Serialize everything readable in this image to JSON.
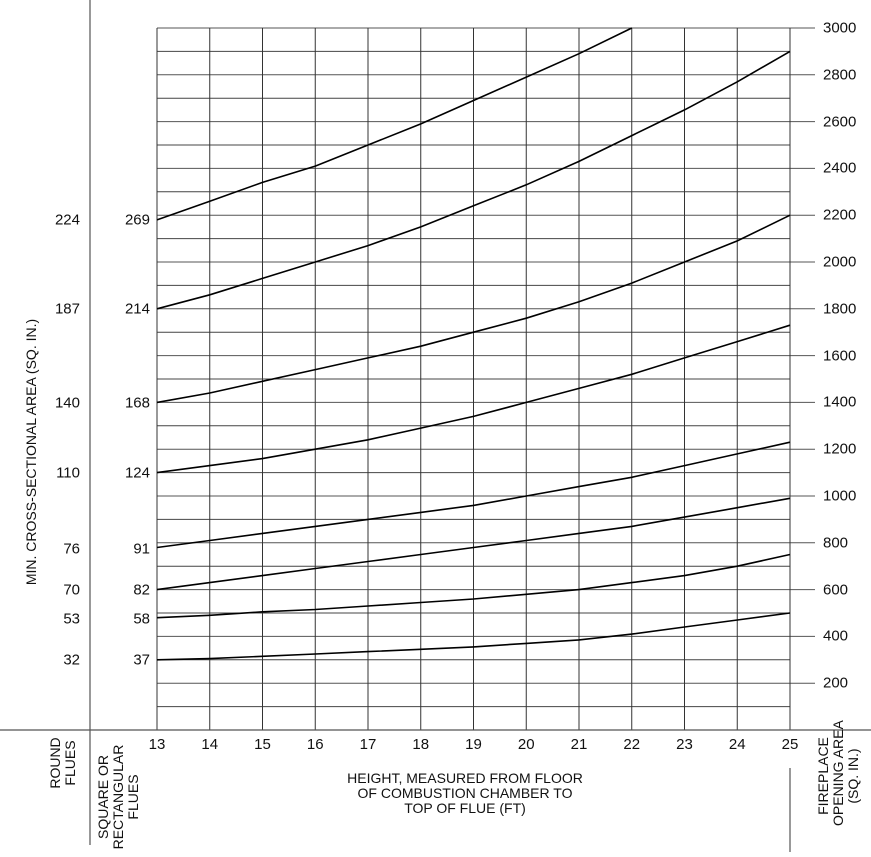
{
  "chart_data": {
    "type": "line",
    "title": "",
    "xlabel": "HEIGHT, MEASURED FROM FLOOR OF COMBUSTION CHAMBER TO TOP OF FLUE (FT)",
    "ylabel_left": "MIN. CROSS-SECTIONAL AREA (SQ. IN.)",
    "ylabel_right": "FIREPLACE OPENING AREA (SQ. IN.)",
    "left_column_headers": {
      "round": "ROUND FLUES",
      "square": "SQUARE OR RECTANGULAR FLUES"
    },
    "x": [
      13,
      14,
      15,
      16,
      17,
      18,
      19,
      20,
      21,
      22,
      23,
      24,
      25
    ],
    "xlim": [
      13,
      25
    ],
    "ylim": [
      0,
      3000
    ],
    "yticks_right": [
      200,
      400,
      600,
      800,
      1000,
      1200,
      1400,
      1600,
      1800,
      2000,
      2200,
      2400,
      2600,
      2800,
      3000
    ],
    "grid": true,
    "series": [
      {
        "name": "269 sq/rect (224 round)",
        "square_flue": "269",
        "round_flue": "224",
        "values": [
          2180,
          2260,
          2340,
          2410,
          2500,
          2590,
          2690,
          2790,
          2890,
          3000,
          null,
          null,
          null
        ]
      },
      {
        "name": "214 sq/rect (187 round)",
        "square_flue": "214",
        "round_flue": "187",
        "values": [
          1800,
          1860,
          1930,
          2000,
          2070,
          2150,
          2240,
          2330,
          2430,
          2540,
          2650,
          2770,
          2900
        ]
      },
      {
        "name": "168 sq/rect (140 round)",
        "square_flue": "168",
        "round_flue": "140",
        "values": [
          1400,
          1440,
          1490,
          1540,
          1590,
          1640,
          1700,
          1760,
          1830,
          1910,
          2000,
          2090,
          2200
        ]
      },
      {
        "name": "124 sq/rect (110 round)",
        "square_flue": "124",
        "round_flue": "110",
        "values": [
          1100,
          1130,
          1160,
          1200,
          1240,
          1290,
          1340,
          1400,
          1460,
          1520,
          1590,
          1660,
          1730
        ]
      },
      {
        "name": "91 sq/rect (76 round)",
        "square_flue": "91",
        "round_flue": "76",
        "values": [
          780,
          810,
          840,
          870,
          900,
          930,
          960,
          1000,
          1040,
          1080,
          1130,
          1180,
          1230
        ]
      },
      {
        "name": "82 sq/rect (70 round)",
        "square_flue": "82",
        "round_flue": "70",
        "values": [
          600,
          630,
          660,
          690,
          720,
          750,
          780,
          810,
          840,
          870,
          910,
          950,
          990
        ]
      },
      {
        "name": "58 sq/rect (53 round)",
        "square_flue": "58",
        "round_flue": "53",
        "values": [
          480,
          490,
          505,
          515,
          530,
          545,
          560,
          580,
          600,
          630,
          660,
          700,
          750
        ]
      },
      {
        "name": "37 sq/rect (32 round)",
        "square_flue": "37",
        "round_flue": "32",
        "values": [
          300,
          305,
          315,
          325,
          335,
          345,
          355,
          370,
          385,
          410,
          440,
          470,
          500
        ]
      }
    ],
    "label_positions_y": {
      "269": 220,
      "214": 309,
      "168": 403,
      "124": 473,
      "91": 549,
      "82": 590,
      "58": 619,
      "37": 660
    }
  },
  "labels": {
    "xlabel_line1": "HEIGHT, MEASURED FROM FLOOR",
    "xlabel_line2": "OF COMBUSTION CHAMBER TO",
    "xlabel_line3": "TOP OF FLUE (FT)",
    "ylabel_left": "MIN. CROSS-SECTIONAL AREA (SQ. IN.)",
    "round_line1": "ROUND",
    "round_line2": "FLUES",
    "square_line1": "SQUARE OR",
    "square_line2": "RECTANGULAR",
    "square_line3": "FLUES",
    "right_line1": "FIREPLACE",
    "right_line2": "OPENING AREA",
    "right_line3": "(SQ. IN.)"
  }
}
